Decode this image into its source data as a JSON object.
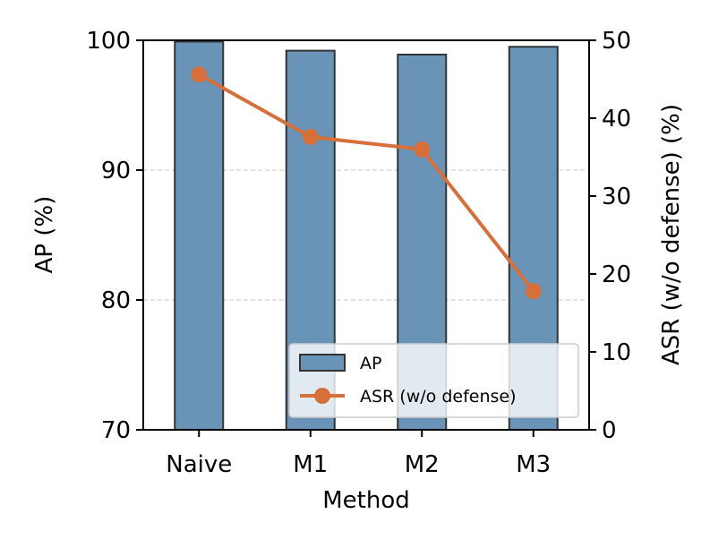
{
  "chart_data": {
    "type": "bar+line",
    "title": "",
    "xlabel": "Method",
    "ylabel_left": "AP (%)",
    "ylabel_right": "ASR (w/o defense) (%)",
    "categories": [
      "Naive",
      "M1",
      "M2",
      "M3"
    ],
    "ylim_left": [
      70,
      100
    ],
    "ylim_right": [
      0,
      50
    ],
    "yticks_left": [
      "70",
      "80",
      "90",
      "100"
    ],
    "yticks_right": [
      "0",
      "10",
      "20",
      "30",
      "40",
      "50"
    ],
    "grid": "horizontal dashed",
    "legend_position": "lower-right",
    "series": [
      {
        "name": "AP",
        "type": "bar",
        "axis": "left",
        "values": [
          99.9,
          99.2,
          98.9,
          99.5
        ],
        "color": "#6a93b8",
        "edge_color": "#333333"
      },
      {
        "name": "ASR (w/o defense)",
        "type": "line",
        "axis": "right",
        "values": [
          45.6,
          37.6,
          36.0,
          17.8
        ],
        "color": "#d66f39"
      }
    ]
  }
}
